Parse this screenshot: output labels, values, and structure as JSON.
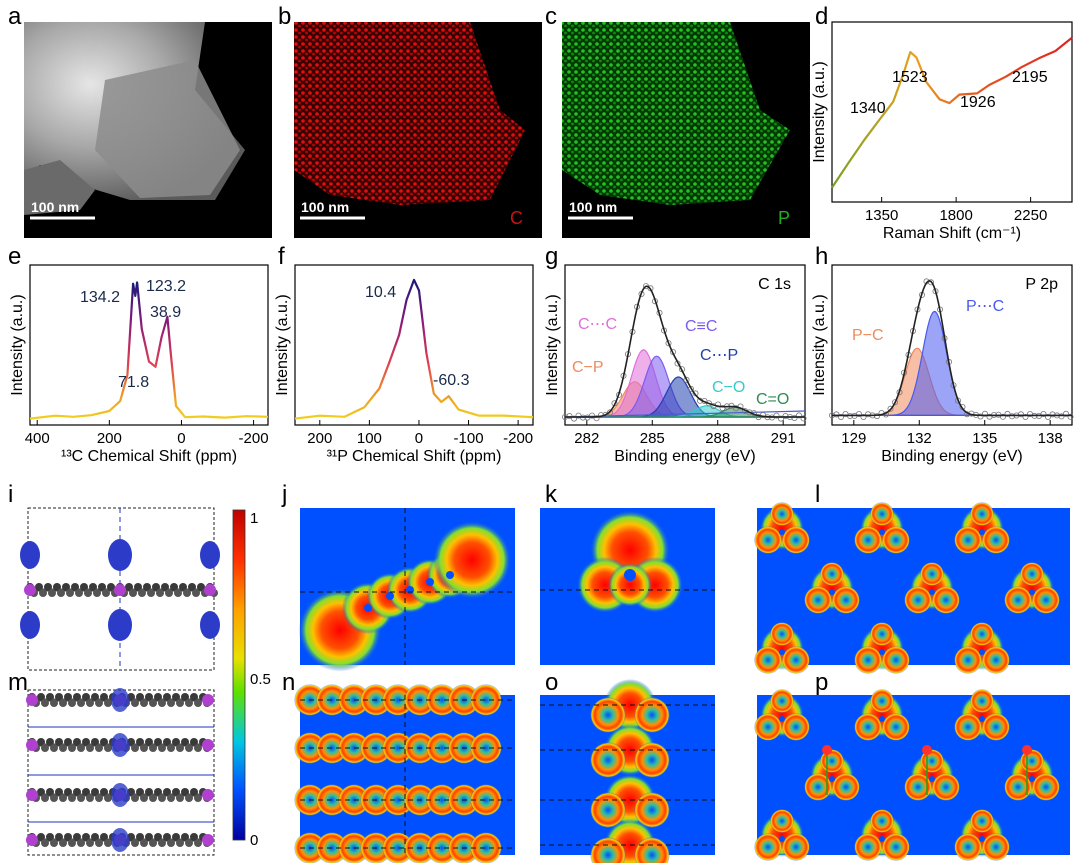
{
  "panel_labels": [
    "a",
    "b",
    "c",
    "d",
    "e",
    "f",
    "g",
    "h",
    "i",
    "j",
    "k",
    "l",
    "m",
    "n",
    "o",
    "p"
  ],
  "scale_bar": "100 nm",
  "element_c": "C",
  "element_p": "P",
  "intensity_label": "Intensity (a.u.)",
  "colorbar": {
    "max": "1",
    "mid": "0.5",
    "min": "0"
  },
  "colors": {
    "carbon_map": "#d01010",
    "phosphorus_map": "#20b020",
    "map_bg": "#0050ff"
  },
  "chart_data": [
    {
      "panel": "d",
      "type": "line",
      "xlabel": "Raman Shift (cm⁻¹)",
      "ylabel": "Intensity (a.u.)",
      "xticks": [
        "1350",
        "1800",
        "2250"
      ],
      "xlim": [
        1050,
        2500
      ],
      "ylim": [
        0,
        1
      ],
      "annotations": [
        "1340",
        "1523",
        "1926",
        "2195"
      ],
      "x": [
        1050,
        1150,
        1250,
        1340,
        1420,
        1480,
        1523,
        1560,
        1620,
        1700,
        1760,
        1820,
        1926,
        2000,
        2100,
        2195,
        2300,
        2400,
        2500
      ],
      "y": [
        0.08,
        0.2,
        0.35,
        0.45,
        0.55,
        0.7,
        0.82,
        0.8,
        0.68,
        0.58,
        0.55,
        0.6,
        0.62,
        0.65,
        0.7,
        0.74,
        0.78,
        0.83,
        0.9
      ]
    },
    {
      "panel": "e",
      "type": "line",
      "xlabel": "¹³C Chemical Shift (ppm)",
      "ylabel": "Intensity (a.u.)",
      "xticks": [
        "400",
        "200",
        "0",
        "-200"
      ],
      "xlim": [
        420,
        -240
      ],
      "ylim": [
        0,
        1
      ],
      "annotations": [
        "134.2",
        "123.2",
        "38.9",
        "71.8"
      ],
      "x": [
        420,
        350,
        300,
        250,
        200,
        170,
        150,
        134,
        128,
        123,
        110,
        90,
        72,
        55,
        39,
        30,
        15,
        -10,
        -60,
        -120,
        -180,
        -240
      ],
      "y": [
        0.04,
        0.04,
        0.05,
        0.05,
        0.08,
        0.14,
        0.3,
        0.88,
        0.82,
        0.9,
        0.6,
        0.4,
        0.38,
        0.55,
        0.68,
        0.45,
        0.1,
        0.04,
        0.04,
        0.04,
        0.04,
        0.04
      ]
    },
    {
      "panel": "f",
      "type": "line",
      "xlabel": "³¹P Chemical Shift (ppm)",
      "ylabel": "Intensity (a.u.)",
      "xticks": [
        "200",
        "100",
        "0",
        "-100",
        "-200"
      ],
      "xlim": [
        250,
        -230
      ],
      "ylim": [
        0,
        1
      ],
      "annotations": [
        "10.4",
        "-60.3"
      ],
      "x": [
        250,
        200,
        150,
        110,
        80,
        60,
        40,
        25,
        10,
        0,
        -15,
        -30,
        -45,
        -60,
        -80,
        -120,
        -170,
        -230
      ],
      "y": [
        0.04,
        0.04,
        0.05,
        0.1,
        0.22,
        0.38,
        0.55,
        0.78,
        0.92,
        0.85,
        0.45,
        0.2,
        0.16,
        0.18,
        0.1,
        0.05,
        0.04,
        0.04
      ]
    },
    {
      "panel": "g",
      "type": "line",
      "title": "C 1s",
      "xlabel": "Binding energy (eV)",
      "ylabel": "Intensity (a.u.)",
      "xticks": [
        "282",
        "285",
        "288",
        "291"
      ],
      "xlim": [
        281,
        292
      ],
      "ylim": [
        0,
        1
      ],
      "components": [
        {
          "name": "C−P",
          "center": 284.2,
          "height": 0.22,
          "color": "#f08a5d"
        },
        {
          "name": "C⋯C",
          "center": 284.6,
          "height": 0.42,
          "color": "#e06fd8"
        },
        {
          "name": "C≡C",
          "center": 285.2,
          "height": 0.38,
          "color": "#7b5cf0"
        },
        {
          "name": "C⋯P",
          "center": 286.2,
          "height": 0.25,
          "color": "#1f3fb0"
        },
        {
          "name": "C−O",
          "center": 287.5,
          "height": 0.07,
          "color": "#33cccc"
        },
        {
          "name": "C=O",
          "center": 288.8,
          "height": 0.06,
          "color": "#2e8b57"
        }
      ],
      "envelope_peak": {
        "x": 284.9,
        "y": 0.9
      }
    },
    {
      "panel": "h",
      "type": "line",
      "title": "P 2p",
      "xlabel": "Binding energy (eV)",
      "ylabel": "Intensity (a.u.)",
      "xticks": [
        "129",
        "132",
        "135",
        "138"
      ],
      "xlim": [
        128,
        139
      ],
      "ylim": [
        0,
        1
      ],
      "components": [
        {
          "name": "P−C",
          "center": 131.9,
          "height": 0.42,
          "color": "#f08a5d"
        },
        {
          "name": "P⋯C",
          "center": 132.7,
          "height": 0.65,
          "color": "#4a5af0"
        }
      ],
      "envelope_peak": {
        "x": 132.3,
        "y": 0.88
      }
    }
  ]
}
